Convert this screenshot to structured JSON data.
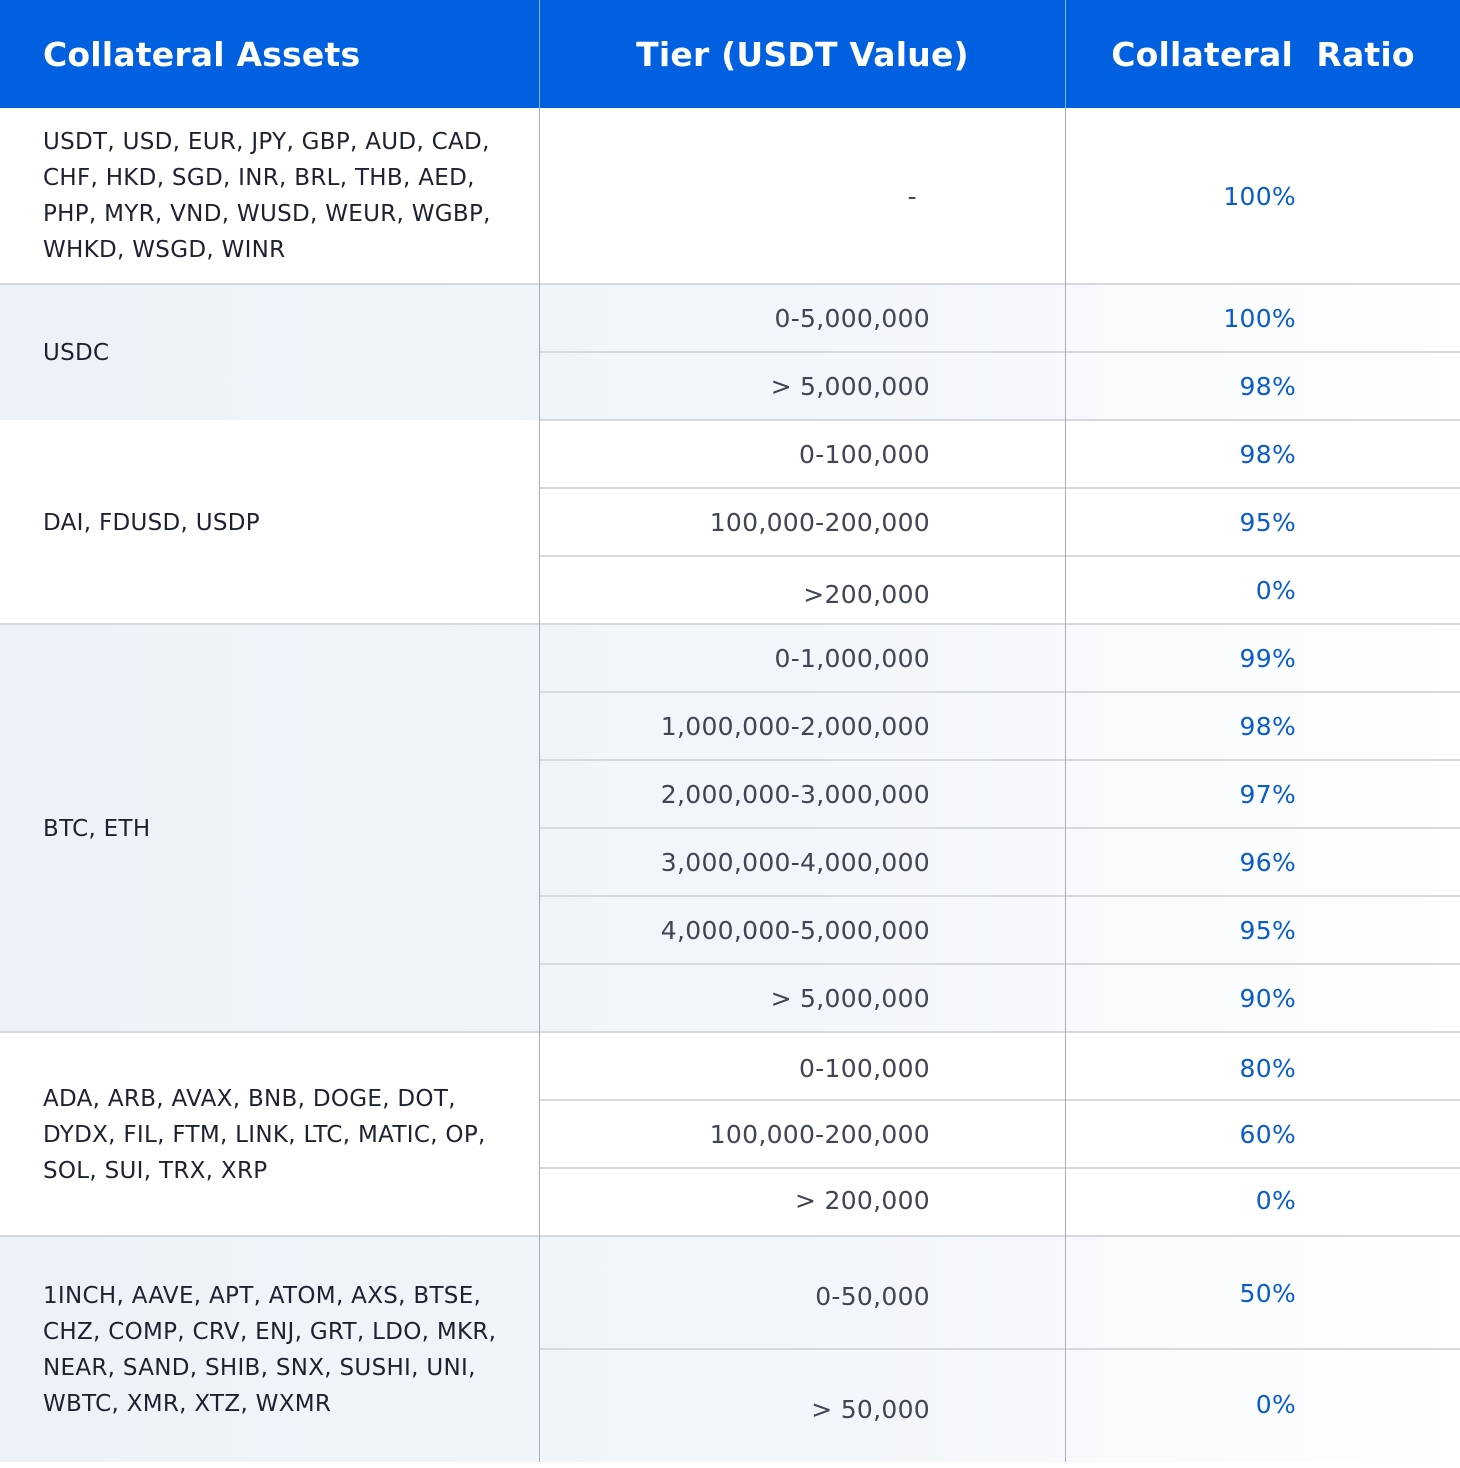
{
  "table": {
    "headers": [
      "Collateral Assets",
      "Tier (USDT Value)",
      "Collateral  Ratio"
    ],
    "groups": [
      {
        "assets": "USDT, USD, EUR, JPY, GBP, AUD, CAD, CHF, HKD, SGD, INR, BRL, THB, AED, PHP, MYR, VND, WUSD, WEUR, WGBP, WHKD, WSGD, WINR",
        "tiers": [
          {
            "tier": "-",
            "ratio": "100%"
          }
        ]
      },
      {
        "assets": "USDC",
        "tiers": [
          {
            "tier": "0-5,000,000",
            "ratio": "100%"
          },
          {
            "tier": "> 5,000,000",
            "ratio": "98%"
          }
        ]
      },
      {
        "assets": "DAI, FDUSD, USDP",
        "tiers": [
          {
            "tier": "0-100,000",
            "ratio": "98%"
          },
          {
            "tier": "100,000-200,000",
            "ratio": "95%"
          },
          {
            "tier": ">200,000",
            "ratio": "0%"
          }
        ]
      },
      {
        "assets": "BTC, ETH",
        "tiers": [
          {
            "tier": "0-1,000,000",
            "ratio": "99%"
          },
          {
            "tier": "1,000,000-2,000,000",
            "ratio": "98%"
          },
          {
            "tier": "2,000,000-3,000,000",
            "ratio": "97%"
          },
          {
            "tier": "3,000,000-4,000,000",
            "ratio": "96%"
          },
          {
            "tier": "4,000,000-5,000,000",
            "ratio": "95%"
          },
          {
            "tier": "> 5,000,000",
            "ratio": "90%"
          }
        ]
      },
      {
        "assets": "ADA, ARB, AVAX, BNB, DOGE, DOT, DYDX, FIL, FTM, LINK, LTC, MATIC, OP, SOL, SUI, TRX, XRP",
        "tiers": [
          {
            "tier": "0-100,000",
            "ratio": "80%"
          },
          {
            "tier": "100,000-200,000",
            "ratio": "60%"
          },
          {
            "tier": "> 200,000",
            "ratio": "0%"
          }
        ]
      },
      {
        "assets": "1INCH, AAVE, APT, ATOM, AXS, BTSE, CHZ, COMP, CRV, ENJ, GRT, LDO, MKR, NEAR, SAND, SHIB, SNX, SUSHI, UNI, WBTC, XMR, XTZ, WXMR",
        "tiers": [
          {
            "tier": "0-50,000",
            "ratio": "50%"
          },
          {
            "tier": "> 50,000",
            "ratio": "0%"
          }
        ]
      }
    ]
  },
  "colors": {
    "header_bg": "#0060e0",
    "ratio_text": "#0a5ccd",
    "alt_row_bg": "#eef2f8"
  }
}
